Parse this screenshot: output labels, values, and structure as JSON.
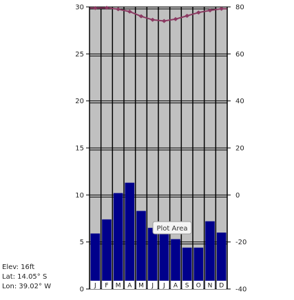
{
  "tooltip": {
    "label": "Plot Area"
  },
  "station": {
    "elevation": "Elev: 16ft",
    "latitude": "Lat: 14.05° S",
    "longitude": "Lon: 39.02° W"
  },
  "colors": {
    "plot_background": "#c0c0c0",
    "grid": "#000000",
    "bar_fill": "#00008b",
    "line": "#8b3a62"
  },
  "chart_data": {
    "type": "bar",
    "categories": [
      "J",
      "F",
      "M",
      "A",
      "M",
      "J",
      "J",
      "A",
      "S",
      "O",
      "N",
      "D"
    ],
    "series": [
      {
        "chart": "bar",
        "axis": "left",
        "values": [
          5.9,
          7.4,
          10.2,
          11.3,
          8.3,
          6.5,
          6.9,
          5.3,
          4.4,
          4.4,
          7.2,
          6.0
        ]
      },
      {
        "chart": "line",
        "axis": "right",
        "values": [
          79.5,
          79.6,
          79.0,
          78.0,
          76.0,
          74.5,
          74.0,
          74.8,
          76.2,
          77.6,
          78.5,
          79.2
        ]
      }
    ],
    "y_left": {
      "ticks": [
        0,
        5,
        10,
        15,
        20,
        25,
        30
      ],
      "range": [
        0,
        30
      ]
    },
    "y_right": {
      "ticks": [
        -40,
        -20,
        0,
        20,
        40,
        60,
        80
      ],
      "range": [
        -40,
        80
      ]
    },
    "grid": true
  }
}
